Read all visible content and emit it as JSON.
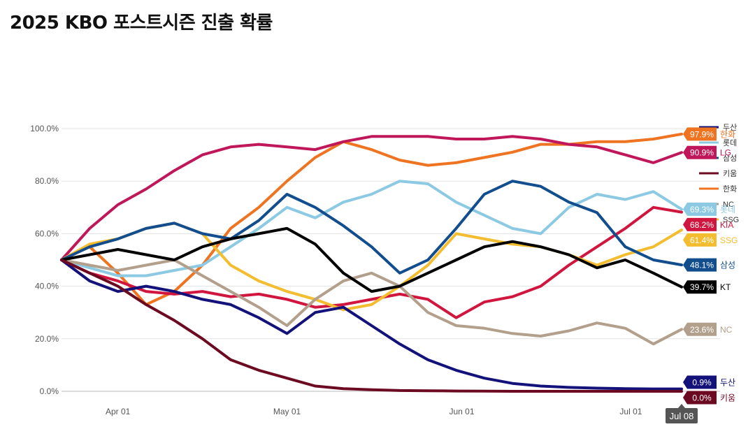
{
  "title": "2025 KBO 포스트시즌 진출 확률",
  "chart_data": {
    "type": "line",
    "title": "2025 KBO 포스트시즌 진출 확률",
    "xlabel": "",
    "ylabel": "",
    "ylim": [
      0,
      100
    ],
    "y_ticks": [
      "0.0%",
      "20.0%",
      "40.0%",
      "60.0%",
      "80.0%",
      "100.0%"
    ],
    "x_ticks": [
      "Apr 01",
      "May 01",
      "Jun 01",
      "Jul 01"
    ],
    "x_range_days": [
      0,
      110
    ],
    "x_tick_days": [
      10,
      40,
      71,
      101
    ],
    "current_date_label": "Jul 08",
    "legend_swatches": [
      {
        "name": "두산",
        "color": "#13127a"
      },
      {
        "name": "롯데",
        "color": "#8cc9e3"
      },
      {
        "name": "삼성",
        "color": "#124e8e"
      },
      {
        "name": "키움",
        "color": "#6c0a22"
      },
      {
        "name": "한화",
        "color": "#ef7422"
      },
      {
        "name": "NC",
        "color": "#b2a08c"
      },
      {
        "name": "SSG",
        "color": "#f3bd2f"
      }
    ],
    "series": [
      {
        "name": "한화",
        "color": "#ef7422",
        "final_label": "97.9%",
        "points": [
          [
            0,
            50
          ],
          [
            5,
            55
          ],
          [
            10,
            45
          ],
          [
            15,
            33
          ],
          [
            20,
            38
          ],
          [
            25,
            48
          ],
          [
            30,
            62
          ],
          [
            35,
            70
          ],
          [
            40,
            80
          ],
          [
            45,
            89
          ],
          [
            50,
            95
          ],
          [
            55,
            92
          ],
          [
            60,
            88
          ],
          [
            65,
            86
          ],
          [
            70,
            87
          ],
          [
            75,
            89
          ],
          [
            80,
            91
          ],
          [
            85,
            94
          ],
          [
            90,
            94
          ],
          [
            95,
            95
          ],
          [
            100,
            95
          ],
          [
            105,
            96
          ],
          [
            110,
            97.9
          ]
        ]
      },
      {
        "name": "LG",
        "color": "#c0175a",
        "final_label": "90.9%",
        "points": [
          [
            0,
            50
          ],
          [
            5,
            62
          ],
          [
            10,
            71
          ],
          [
            15,
            77
          ],
          [
            20,
            84
          ],
          [
            25,
            90
          ],
          [
            30,
            93
          ],
          [
            35,
            94
          ],
          [
            40,
            93
          ],
          [
            45,
            92
          ],
          [
            50,
            95
          ],
          [
            55,
            97
          ],
          [
            60,
            97
          ],
          [
            65,
            97
          ],
          [
            70,
            96
          ],
          [
            75,
            96
          ],
          [
            80,
            97
          ],
          [
            85,
            96
          ],
          [
            90,
            94
          ],
          [
            95,
            93
          ],
          [
            100,
            90
          ],
          [
            105,
            87
          ],
          [
            110,
            90.9
          ]
        ]
      },
      {
        "name": "롯데",
        "color": "#8cc9e3",
        "final_label": "69.3%",
        "points": [
          [
            0,
            50
          ],
          [
            5,
            47
          ],
          [
            10,
            44
          ],
          [
            15,
            44
          ],
          [
            20,
            46
          ],
          [
            25,
            48
          ],
          [
            30,
            55
          ],
          [
            35,
            62
          ],
          [
            40,
            70
          ],
          [
            45,
            66
          ],
          [
            50,
            72
          ],
          [
            55,
            75
          ],
          [
            60,
            80
          ],
          [
            65,
            79
          ],
          [
            70,
            72
          ],
          [
            75,
            67
          ],
          [
            80,
            62
          ],
          [
            85,
            60
          ],
          [
            90,
            70
          ],
          [
            95,
            75
          ],
          [
            100,
            73
          ],
          [
            105,
            76
          ],
          [
            110,
            69.3
          ]
        ]
      },
      {
        "name": "KIA",
        "color": "#d0163e",
        "final_label": "68.2%",
        "points": [
          [
            0,
            50
          ],
          [
            5,
            45
          ],
          [
            10,
            42
          ],
          [
            15,
            38
          ],
          [
            20,
            37
          ],
          [
            25,
            38
          ],
          [
            30,
            36
          ],
          [
            35,
            37
          ],
          [
            40,
            35
          ],
          [
            45,
            32
          ],
          [
            50,
            33
          ],
          [
            55,
            35
          ],
          [
            60,
            37
          ],
          [
            65,
            35
          ],
          [
            70,
            28
          ],
          [
            75,
            34
          ],
          [
            80,
            36
          ],
          [
            85,
            40
          ],
          [
            90,
            48
          ],
          [
            95,
            55
          ],
          [
            100,
            62
          ],
          [
            105,
            70
          ],
          [
            110,
            68.2
          ]
        ]
      },
      {
        "name": "SSG",
        "color": "#f3bd2f",
        "final_label": "61.4%",
        "points": [
          [
            0,
            50
          ],
          [
            5,
            56
          ],
          [
            10,
            58
          ],
          [
            15,
            62
          ],
          [
            20,
            64
          ],
          [
            25,
            60
          ],
          [
            30,
            48
          ],
          [
            35,
            42
          ],
          [
            40,
            38
          ],
          [
            45,
            35
          ],
          [
            50,
            31
          ],
          [
            55,
            33
          ],
          [
            60,
            40
          ],
          [
            65,
            48
          ],
          [
            70,
            60
          ],
          [
            75,
            58
          ],
          [
            80,
            56
          ],
          [
            85,
            55
          ],
          [
            90,
            52
          ],
          [
            95,
            48
          ],
          [
            100,
            52
          ],
          [
            105,
            55
          ],
          [
            110,
            61.4
          ]
        ]
      },
      {
        "name": "삼성",
        "color": "#124e8e",
        "final_label": "48.1%",
        "points": [
          [
            0,
            50
          ],
          [
            5,
            55
          ],
          [
            10,
            58
          ],
          [
            15,
            62
          ],
          [
            20,
            64
          ],
          [
            25,
            60
          ],
          [
            30,
            58
          ],
          [
            35,
            65
          ],
          [
            40,
            75
          ],
          [
            45,
            70
          ],
          [
            50,
            63
          ],
          [
            55,
            55
          ],
          [
            60,
            45
          ],
          [
            65,
            50
          ],
          [
            70,
            62
          ],
          [
            75,
            75
          ],
          [
            80,
            80
          ],
          [
            85,
            78
          ],
          [
            90,
            72
          ],
          [
            95,
            68
          ],
          [
            100,
            55
          ],
          [
            105,
            50
          ],
          [
            110,
            48.1
          ]
        ]
      },
      {
        "name": "NC",
        "color": "#b2a08c",
        "final_label": "23.6%",
        "points": [
          [
            0,
            50
          ],
          [
            5,
            48
          ],
          [
            10,
            46
          ],
          [
            15,
            48
          ],
          [
            20,
            50
          ],
          [
            25,
            44
          ],
          [
            30,
            38
          ],
          [
            35,
            32
          ],
          [
            40,
            25
          ],
          [
            45,
            35
          ],
          [
            50,
            42
          ],
          [
            55,
            45
          ],
          [
            60,
            40
          ],
          [
            65,
            30
          ],
          [
            70,
            25
          ],
          [
            75,
            24
          ],
          [
            80,
            22
          ],
          [
            85,
            21
          ],
          [
            90,
            23
          ],
          [
            95,
            26
          ],
          [
            100,
            24
          ],
          [
            105,
            18
          ],
          [
            110,
            23.6
          ]
        ]
      },
      {
        "name": "KT",
        "color": "#000000",
        "final_label": "39.7%",
        "points": [
          [
            0,
            50
          ],
          [
            5,
            52
          ],
          [
            10,
            54
          ],
          [
            15,
            52
          ],
          [
            20,
            50
          ],
          [
            25,
            55
          ],
          [
            30,
            58
          ],
          [
            35,
            60
          ],
          [
            40,
            62
          ],
          [
            45,
            56
          ],
          [
            50,
            45
          ],
          [
            55,
            38
          ],
          [
            60,
            40
          ],
          [
            65,
            45
          ],
          [
            70,
            50
          ],
          [
            75,
            55
          ],
          [
            80,
            57
          ],
          [
            85,
            55
          ],
          [
            90,
            52
          ],
          [
            95,
            47
          ],
          [
            100,
            50
          ],
          [
            105,
            45
          ],
          [
            110,
            39.7
          ]
        ]
      },
      {
        "name": "두산",
        "color": "#13127a",
        "final_label": "0.9%",
        "points": [
          [
            0,
            50
          ],
          [
            5,
            42
          ],
          [
            10,
            38
          ],
          [
            15,
            40
          ],
          [
            20,
            38
          ],
          [
            25,
            35
          ],
          [
            30,
            33
          ],
          [
            35,
            28
          ],
          [
            40,
            22
          ],
          [
            45,
            30
          ],
          [
            50,
            32
          ],
          [
            55,
            25
          ],
          [
            60,
            18
          ],
          [
            65,
            12
          ],
          [
            70,
            8
          ],
          [
            75,
            5
          ],
          [
            80,
            3
          ],
          [
            85,
            2
          ],
          [
            90,
            1.5
          ],
          [
            95,
            1.2
          ],
          [
            100,
            1
          ],
          [
            105,
            0.9
          ],
          [
            110,
            0.9
          ]
        ]
      },
      {
        "name": "키움",
        "color": "#6c0a22",
        "final_label": "0.0%",
        "points": [
          [
            0,
            50
          ],
          [
            5,
            45
          ],
          [
            10,
            40
          ],
          [
            15,
            33
          ],
          [
            20,
            27
          ],
          [
            25,
            20
          ],
          [
            30,
            12
          ],
          [
            35,
            8
          ],
          [
            40,
            5
          ],
          [
            45,
            2
          ],
          [
            50,
            1
          ],
          [
            55,
            0.6
          ],
          [
            60,
            0.3
          ],
          [
            65,
            0.2
          ],
          [
            70,
            0.1
          ],
          [
            75,
            0.05
          ],
          [
            80,
            0
          ],
          [
            85,
            0
          ],
          [
            90,
            0
          ],
          [
            95,
            0
          ],
          [
            100,
            0
          ],
          [
            105,
            0
          ],
          [
            110,
            0
          ]
        ]
      }
    ]
  }
}
